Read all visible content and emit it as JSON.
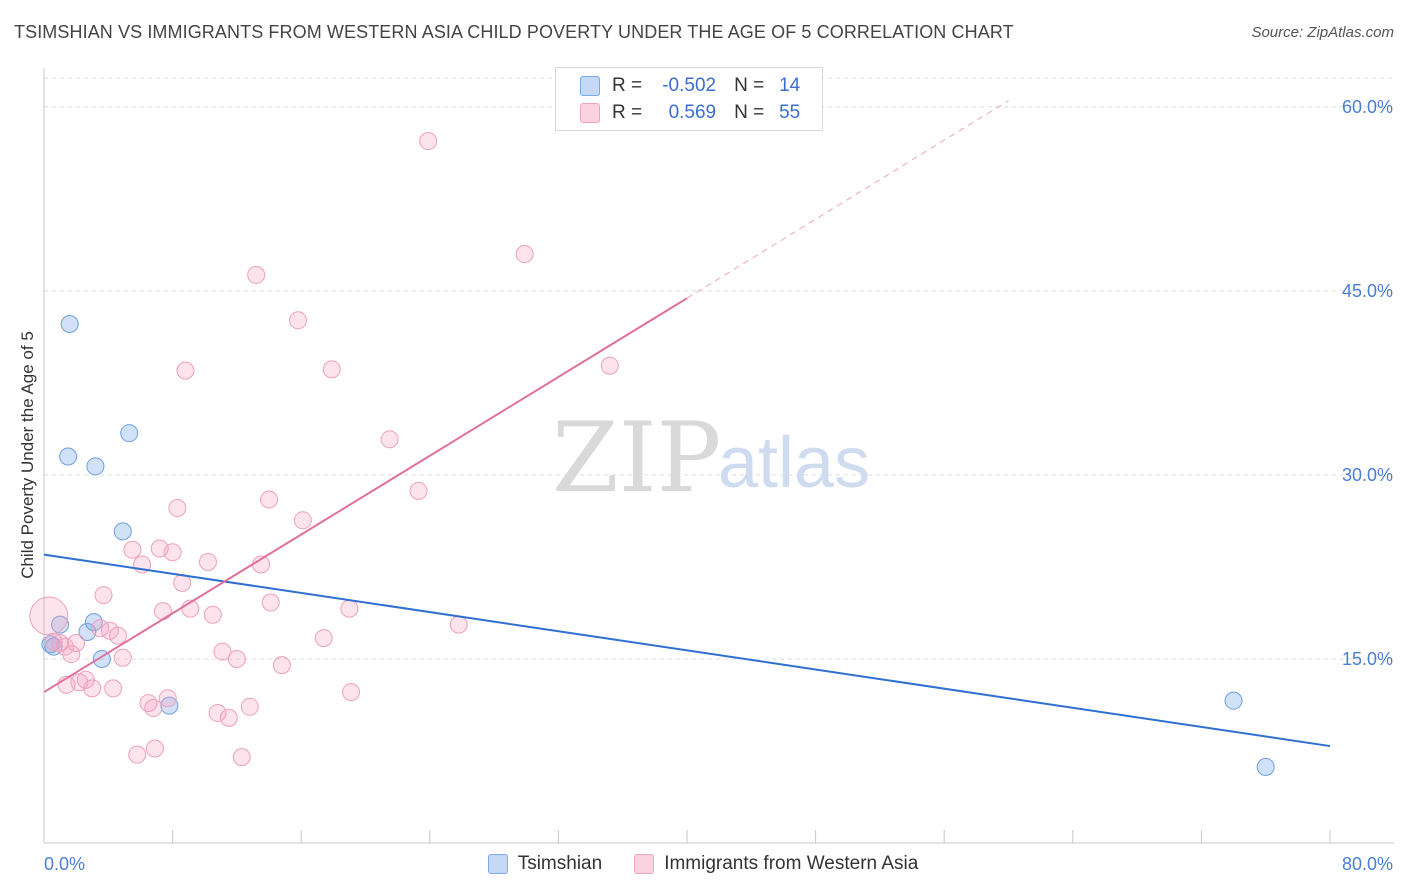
{
  "header": {
    "title": "TSIMSHIAN VS IMMIGRANTS FROM WESTERN ASIA CHILD POVERTY UNDER THE AGE OF 5 CORRELATION CHART",
    "source": "Source: ZipAtlas.com"
  },
  "watermark": {
    "zip": "ZIP",
    "atlas": "atlas"
  },
  "stats_legend": {
    "rows": [
      {
        "r_label": "R =",
        "r_value": "-0.502",
        "n_label": "N =",
        "n_value": "14"
      },
      {
        "r_label": "R =",
        "r_value": "0.569",
        "n_label": "N =",
        "n_value": "55"
      }
    ]
  },
  "chart_data": {
    "type": "scatter",
    "title": "TSIMSHIAN VS IMMIGRANTS FROM WESTERN ASIA CHILD POVERTY UNDER THE AGE OF 5 CORRELATION CHART",
    "xlabel": "",
    "ylabel": "Child Poverty Under the Age of 5",
    "xlim": [
      0,
      80
    ],
    "ylim": [
      0,
      63
    ],
    "x_tick_labels": [
      {
        "value": 0,
        "label": "0.0%"
      },
      {
        "value": 80,
        "label": "80.0%"
      }
    ],
    "y_tick_labels": [
      {
        "value": 15,
        "label": "15.0%"
      },
      {
        "value": 30,
        "label": "30.0%"
      },
      {
        "value": 45,
        "label": "45.0%"
      },
      {
        "value": 60,
        "label": "60.0%"
      }
    ],
    "grid": true,
    "colors": {
      "tsimshian": "#7aaae8",
      "tsimshian_line": "#2f6fd0",
      "immigrants": "#f4a3bf",
      "immigrants_line": "#e0709a",
      "tick_text": "#4a7fd4"
    },
    "series": [
      {
        "name": "Tsimshian",
        "color": "#7aaae8",
        "r": -0.502,
        "n": 14,
        "points": [
          [
            0.4,
            16.2
          ],
          [
            1.0,
            17.8
          ],
          [
            1.6,
            42.3
          ],
          [
            1.5,
            31.5
          ],
          [
            3.2,
            30.7
          ],
          [
            5.3,
            33.4
          ],
          [
            4.9,
            25.4
          ],
          [
            2.7,
            17.2
          ],
          [
            3.1,
            18.0
          ],
          [
            3.6,
            15.0
          ],
          [
            7.8,
            11.2
          ],
          [
            74.0,
            11.6
          ],
          [
            76.0,
            6.2
          ],
          [
            0.6,
            16.0
          ]
        ],
        "trend": {
          "x": [
            0,
            80
          ],
          "y": [
            23.5,
            7.9
          ]
        }
      },
      {
        "name": "Immigrants from Western Asia",
        "color": "#f4a3bf",
        "r": 0.569,
        "n": 55,
        "points": [
          [
            0.3,
            18.5
          ],
          [
            0.6,
            16.4
          ],
          [
            1.0,
            16.3
          ],
          [
            1.3,
            16.0
          ],
          [
            1.7,
            15.4
          ],
          [
            2.0,
            16.3
          ],
          [
            2.2,
            13.1
          ],
          [
            2.6,
            13.3
          ],
          [
            3.0,
            12.6
          ],
          [
            3.5,
            17.5
          ],
          [
            3.7,
            20.2
          ],
          [
            4.1,
            17.3
          ],
          [
            4.3,
            12.6
          ],
          [
            4.6,
            16.9
          ],
          [
            4.9,
            15.1
          ],
          [
            5.5,
            23.9
          ],
          [
            5.8,
            7.2
          ],
          [
            6.1,
            22.7
          ],
          [
            6.5,
            11.4
          ],
          [
            6.8,
            11.0
          ],
          [
            6.9,
            7.7
          ],
          [
            7.2,
            24.0
          ],
          [
            7.4,
            18.9
          ],
          [
            7.7,
            11.8
          ],
          [
            8.0,
            23.7
          ],
          [
            8.3,
            27.3
          ],
          [
            8.6,
            21.2
          ],
          [
            8.8,
            38.5
          ],
          [
            9.1,
            19.1
          ],
          [
            10.2,
            22.9
          ],
          [
            10.5,
            18.6
          ],
          [
            10.8,
            10.6
          ],
          [
            11.1,
            15.6
          ],
          [
            11.5,
            10.2
          ],
          [
            12.0,
            15.0
          ],
          [
            12.3,
            7.0
          ],
          [
            12.8,
            11.1
          ],
          [
            13.2,
            46.3
          ],
          [
            13.5,
            22.7
          ],
          [
            14.0,
            28.0
          ],
          [
            14.1,
            19.6
          ],
          [
            14.8,
            14.5
          ],
          [
            15.8,
            42.6
          ],
          [
            16.1,
            26.3
          ],
          [
            17.4,
            16.7
          ],
          [
            17.9,
            38.6
          ],
          [
            19.0,
            19.1
          ],
          [
            19.1,
            12.3
          ],
          [
            21.5,
            32.9
          ],
          [
            23.3,
            28.7
          ],
          [
            23.9,
            57.2
          ],
          [
            25.8,
            17.8
          ],
          [
            29.9,
            48.0
          ],
          [
            35.2,
            38.9
          ],
          [
            1.4,
            12.9
          ]
        ],
        "trend": {
          "x": [
            0,
            40
          ],
          "y": [
            12.3,
            44.4
          ]
        },
        "trend_extension": {
          "x": [
            40,
            60
          ],
          "y": [
            44.4,
            60.5
          ]
        }
      }
    ]
  },
  "bottom_legend": {
    "items": [
      {
        "label": "Tsimshian",
        "color": "#7aaae8"
      },
      {
        "label": "Immigrants from Western Asia",
        "color": "#f4a3bf"
      }
    ]
  }
}
